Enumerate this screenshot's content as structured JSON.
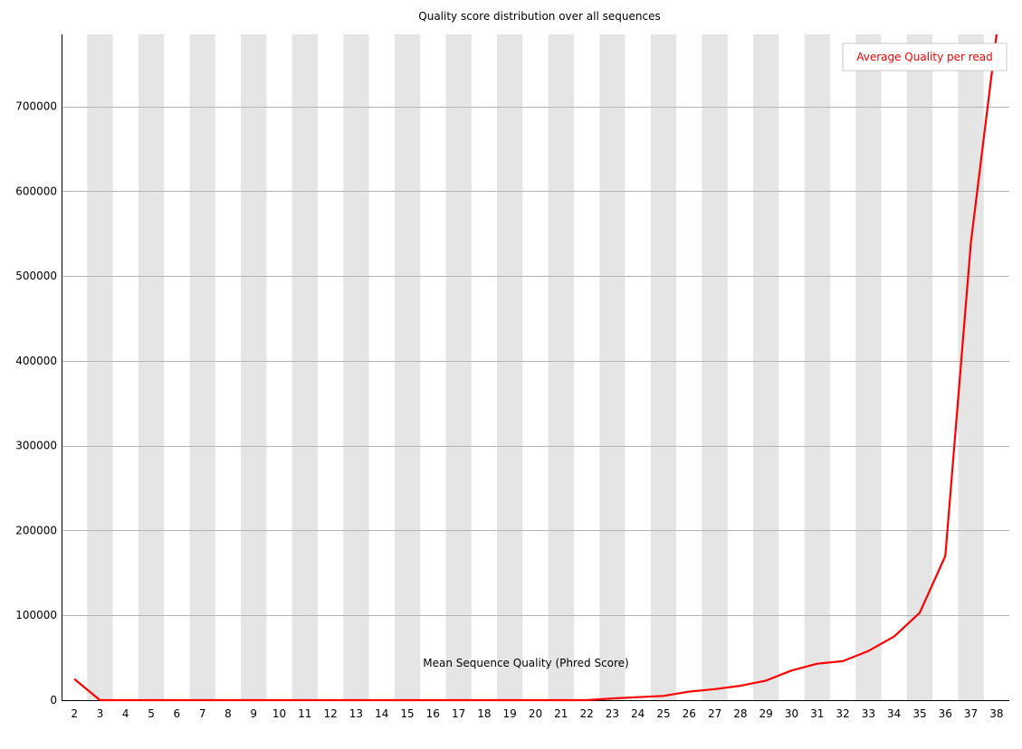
{
  "chart_data": {
    "type": "line",
    "title": "Quality score distribution over all sequences",
    "xlabel": "Mean Sequence Quality (Phred Score)",
    "ylabel": "",
    "x": [
      2,
      3,
      4,
      5,
      6,
      7,
      8,
      9,
      10,
      11,
      12,
      13,
      14,
      15,
      16,
      17,
      18,
      19,
      20,
      21,
      22,
      23,
      24,
      25,
      26,
      27,
      28,
      29,
      30,
      31,
      32,
      33,
      34,
      35,
      36,
      37,
      38
    ],
    "series": [
      {
        "name": "Average Quality per read",
        "color": "#ff0000",
        "values": [
          25000,
          0,
          0,
          0,
          0,
          0,
          0,
          0,
          0,
          0,
          0,
          0,
          0,
          0,
          0,
          0,
          0,
          0,
          0,
          0,
          0,
          2000,
          3500,
          5000,
          10000,
          13000,
          17000,
          23000,
          35000,
          43000,
          46000,
          58000,
          75000,
          103000,
          170000,
          540000,
          785000
        ]
      }
    ],
    "ylim": [
      0,
      785000
    ],
    "yticks": [
      0,
      100000,
      200000,
      300000,
      400000,
      500000,
      600000,
      700000
    ],
    "ytick_labels": [
      "0",
      "100000",
      "200000",
      "300000",
      "400000",
      "500000",
      "600000",
      "700000"
    ],
    "grid": true,
    "alternating_bands": true,
    "legend_position": "top-right"
  }
}
